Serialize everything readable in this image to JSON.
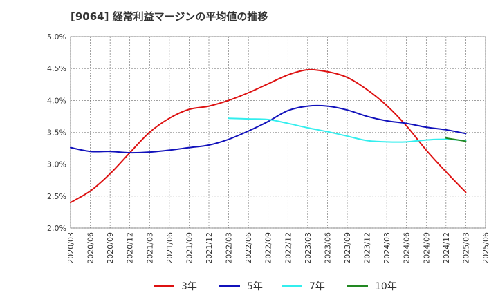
{
  "chart_data": {
    "type": "line",
    "title": "[9064]  経常利益マージンの平均値の推移",
    "xlabel": "",
    "ylabel": "",
    "ylim": [
      2.0,
      5.0
    ],
    "yticks": [
      "2.0%",
      "2.5%",
      "3.0%",
      "3.5%",
      "4.0%",
      "4.5%",
      "5.0%"
    ],
    "ytick_values": [
      2.0,
      2.5,
      3.0,
      3.5,
      4.0,
      4.5,
      5.0
    ],
    "categories": [
      "2020/03",
      "2020/06",
      "2020/09",
      "2020/12",
      "2021/03",
      "2021/06",
      "2021/09",
      "2021/12",
      "2022/03",
      "2022/06",
      "2022/09",
      "2022/12",
      "2023/03",
      "2023/06",
      "2023/09",
      "2023/12",
      "2024/03",
      "2024/06",
      "2024/09",
      "2024/12",
      "2025/03",
      "2025/06"
    ],
    "grid": true,
    "legend_position": "bottom",
    "series": [
      {
        "name": "3年",
        "color": "#dd1111",
        "values": [
          2.4,
          2.58,
          2.85,
          3.18,
          3.5,
          3.72,
          3.86,
          3.91,
          4.0,
          4.12,
          4.26,
          4.4,
          4.48,
          4.45,
          4.36,
          4.17,
          3.92,
          3.6,
          3.22,
          2.88,
          2.56,
          null
        ]
      },
      {
        "name": "5年",
        "color": "#1111bb",
        "values": [
          3.26,
          3.2,
          3.2,
          3.18,
          3.19,
          3.22,
          3.26,
          3.3,
          3.39,
          3.52,
          3.67,
          3.84,
          3.91,
          3.91,
          3.85,
          3.75,
          3.68,
          3.64,
          3.58,
          3.54,
          3.48,
          null
        ]
      },
      {
        "name": "7年",
        "color": "#33eeee",
        "values": [
          null,
          null,
          null,
          null,
          null,
          null,
          null,
          null,
          3.72,
          3.71,
          3.7,
          3.64,
          3.57,
          3.51,
          3.44,
          3.37,
          3.35,
          3.35,
          3.38,
          3.39,
          3.37,
          null
        ]
      },
      {
        "name": "10年",
        "color": "#228822",
        "values": [
          null,
          null,
          null,
          null,
          null,
          null,
          null,
          null,
          null,
          null,
          null,
          null,
          null,
          null,
          null,
          null,
          null,
          null,
          null,
          3.41,
          3.36,
          null
        ]
      }
    ]
  }
}
